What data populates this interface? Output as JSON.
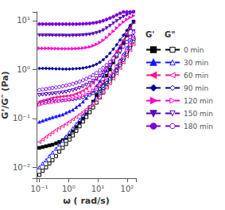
{
  "chart_data": {
    "type": "line",
    "log": true,
    "grid": false,
    "legend": "right",
    "xlabel": "ω ( rad/s)",
    "ylabel": "G’/G″ (Pa)",
    "annotations": [
      "G'",
      "G\""
    ],
    "xlim": [
      0.08,
      200
    ],
    "ylim": [
      0.006,
      15
    ],
    "xticks": [
      {
        "value": 0.1,
        "label": "10⁻¹"
      },
      {
        "value": 1,
        "label": "10⁰"
      },
      {
        "value": 10,
        "label": "10¹"
      },
      {
        "value": 100,
        "label": "10²"
      }
    ],
    "yticks": [
      {
        "value": 0.01,
        "label": "10⁻²"
      },
      {
        "value": 0.1,
        "label": "10⁻¹"
      },
      {
        "value": 1,
        "label": "10⁰"
      },
      {
        "value": 10,
        "label": "10¹"
      }
    ],
    "x": [
      0.1,
      0.13,
      0.17,
      0.22,
      0.28,
      0.37,
      0.48,
      0.63,
      0.82,
      1.07,
      1.4,
      1.83,
      2.38,
      3.1,
      4.04,
      5.27,
      6.87,
      8.96,
      11.68,
      15.23,
      19.85,
      25.88,
      33.74,
      44.0,
      57.36,
      74.77,
      97.47,
      127.07,
      165.72
    ],
    "series": [
      {
        "name": "0 min",
        "color": "black",
        "marker": "square",
        "line_style": "solid",
        "values": [
          0.025,
          0.026,
          0.027,
          0.028,
          0.029,
          0.031,
          0.033,
          0.036,
          0.04,
          0.047,
          0.056,
          0.068,
          0.083,
          0.1,
          0.13,
          0.17,
          0.22,
          0.3,
          0.4,
          0.55,
          0.75,
          1.0,
          1.4,
          1.9,
          2.6,
          3.5,
          5.0,
          7.0,
          9.5
        ]
      },
      {
        "name": "0 min",
        "color": "black",
        "marker": "open_square",
        "line_style": "dashed",
        "values": [
          0.007,
          0.0085,
          0.01,
          0.012,
          0.014,
          0.017,
          0.021,
          0.025,
          0.03,
          0.037,
          0.045,
          0.056,
          0.069,
          0.086,
          0.107,
          0.134,
          0.167,
          0.21,
          0.27,
          0.34,
          0.44,
          0.57,
          0.74,
          0.97,
          1.28,
          1.7,
          2.3,
          3.1,
          4.2
        ]
      },
      {
        "name": "30 min",
        "color": "#1515FF",
        "marker": "triangle_up",
        "line_style": "solid",
        "values": [
          0.085,
          0.09,
          0.095,
          0.1,
          0.105,
          0.11,
          0.115,
          0.12,
          0.13,
          0.14,
          0.15,
          0.17,
          0.19,
          0.22,
          0.26,
          0.31,
          0.37,
          0.46,
          0.58,
          0.74,
          0.95,
          1.25,
          1.65,
          2.2,
          2.9,
          3.9,
          5.2,
          7.0,
          9.3
        ]
      },
      {
        "name": "30 min",
        "color": "#1515FF",
        "marker": "open_triangle_up",
        "line_style": "dashed",
        "values": [
          0.01,
          0.012,
          0.014,
          0.017,
          0.02,
          0.024,
          0.029,
          0.035,
          0.043,
          0.052,
          0.063,
          0.077,
          0.094,
          0.115,
          0.14,
          0.173,
          0.21,
          0.265,
          0.33,
          0.42,
          0.54,
          0.7,
          0.9,
          1.18,
          1.55,
          2.05,
          2.75,
          3.7,
          5.0
        ]
      },
      {
        "name": "60 min",
        "color": "#FF1493",
        "marker": "triangle_left",
        "line_style": "solid",
        "values": [
          0.22,
          0.23,
          0.24,
          0.25,
          0.26,
          0.27,
          0.275,
          0.28,
          0.285,
          0.29,
          0.3,
          0.32,
          0.34,
          0.37,
          0.41,
          0.46,
          0.53,
          0.62,
          0.75,
          0.92,
          1.15,
          1.45,
          1.85,
          2.4,
          3.1,
          4.0,
          5.3,
          7.0,
          9.2
        ]
      },
      {
        "name": "60 min",
        "color": "#FF1493",
        "marker": "open_triangle_left",
        "line_style": "dashed",
        "values": [
          0.033,
          0.037,
          0.042,
          0.047,
          0.052,
          0.058,
          0.064,
          0.07,
          0.077,
          0.086,
          0.096,
          0.107,
          0.12,
          0.135,
          0.153,
          0.175,
          0.203,
          0.24,
          0.285,
          0.345,
          0.42,
          0.52,
          0.65,
          0.83,
          1.07,
          1.4,
          1.85,
          2.5,
          3.3
        ]
      },
      {
        "name": "90 min",
        "color": "#00008B",
        "marker": "diamond",
        "line_style": "solid",
        "values": [
          1.05,
          1.05,
          1.05,
          1.04,
          1.04,
          1.03,
          1.03,
          1.02,
          1.02,
          1.02,
          1.03,
          1.04,
          1.05,
          1.07,
          1.1,
          1.14,
          1.2,
          1.28,
          1.4,
          1.58,
          1.82,
          2.15,
          2.6,
          3.2,
          4.0,
          5.0,
          6.3,
          8.0,
          9.5
        ]
      },
      {
        "name": "90 min",
        "color": "#00008B",
        "marker": "open_diamond",
        "line_style": "dashed",
        "values": [
          0.2,
          0.21,
          0.22,
          0.225,
          0.228,
          0.23,
          0.232,
          0.234,
          0.237,
          0.24,
          0.244,
          0.25,
          0.258,
          0.268,
          0.282,
          0.3,
          0.324,
          0.356,
          0.4,
          0.46,
          0.54,
          0.64,
          0.77,
          0.95,
          1.2,
          1.55,
          2.05,
          2.75,
          3.7
        ]
      },
      {
        "name": "120 min",
        "color": "#FF00CC",
        "marker": "triangle_right",
        "line_style": "solid",
        "values": [
          2.7,
          2.7,
          2.7,
          2.7,
          2.68,
          2.67,
          2.66,
          2.65,
          2.65,
          2.65,
          2.66,
          2.67,
          2.7,
          2.74,
          2.8,
          2.9,
          3.05,
          3.25,
          3.55,
          3.95,
          4.5,
          5.2,
          6.0,
          7.0,
          8.2,
          9.3,
          10.5,
          11.5,
          12.5
        ]
      },
      {
        "name": "120 min",
        "color": "#FF00CC",
        "marker": "open_triangle_right",
        "line_style": "dashed",
        "values": [
          0.19,
          0.2,
          0.205,
          0.21,
          0.215,
          0.22,
          0.225,
          0.23,
          0.235,
          0.242,
          0.25,
          0.26,
          0.273,
          0.29,
          0.312,
          0.34,
          0.375,
          0.42,
          0.48,
          0.555,
          0.65,
          0.77,
          0.93,
          1.15,
          1.45,
          1.85,
          2.45,
          3.3,
          4.4
        ]
      },
      {
        "name": "150 min",
        "color": "#5500BB",
        "marker": "triangle_down",
        "line_style": "solid",
        "values": [
          5.0,
          5.0,
          5.0,
          5.0,
          4.98,
          4.97,
          4.96,
          4.95,
          4.94,
          4.94,
          4.95,
          4.97,
          5.0,
          5.05,
          5.12,
          5.22,
          5.38,
          5.6,
          5.9,
          6.35,
          7.0,
          7.8,
          8.8,
          9.8,
          11.0,
          12.0,
          13.0,
          14.0,
          15.0
        ]
      },
      {
        "name": "150 min",
        "color": "#5500BB",
        "marker": "open_triangle_down",
        "line_style": "dashed",
        "values": [
          0.3,
          0.305,
          0.31,
          0.315,
          0.32,
          0.325,
          0.332,
          0.34,
          0.35,
          0.362,
          0.377,
          0.396,
          0.42,
          0.45,
          0.485,
          0.53,
          0.585,
          0.655,
          0.745,
          0.86,
          1.01,
          1.21,
          1.47,
          1.81,
          2.25,
          2.85,
          3.65,
          4.7,
          6.0
        ]
      },
      {
        "name": "180 min",
        "color": "#7700DD",
        "marker": "circle",
        "line_style": "solid",
        "values": [
          8.5,
          8.5,
          8.5,
          8.5,
          8.49,
          8.48,
          8.47,
          8.46,
          8.45,
          8.45,
          8.46,
          8.48,
          8.51,
          8.56,
          8.63,
          8.75,
          8.92,
          9.15,
          9.48,
          9.9,
          10.5,
          11.2,
          12.0,
          13.0,
          14.0,
          15.0,
          15.0,
          15.0,
          15.0
        ]
      },
      {
        "name": "180 min",
        "color": "#7700DD",
        "marker": "open_circle",
        "line_style": "dashed",
        "values": [
          0.38,
          0.39,
          0.4,
          0.41,
          0.42,
          0.43,
          0.44,
          0.455,
          0.47,
          0.49,
          0.51,
          0.535,
          0.565,
          0.6,
          0.645,
          0.7,
          0.768,
          0.85,
          0.952,
          1.08,
          1.24,
          1.44,
          1.69,
          2.01,
          2.42,
          2.95,
          3.65,
          4.55,
          5.7
        ]
      }
    ]
  }
}
